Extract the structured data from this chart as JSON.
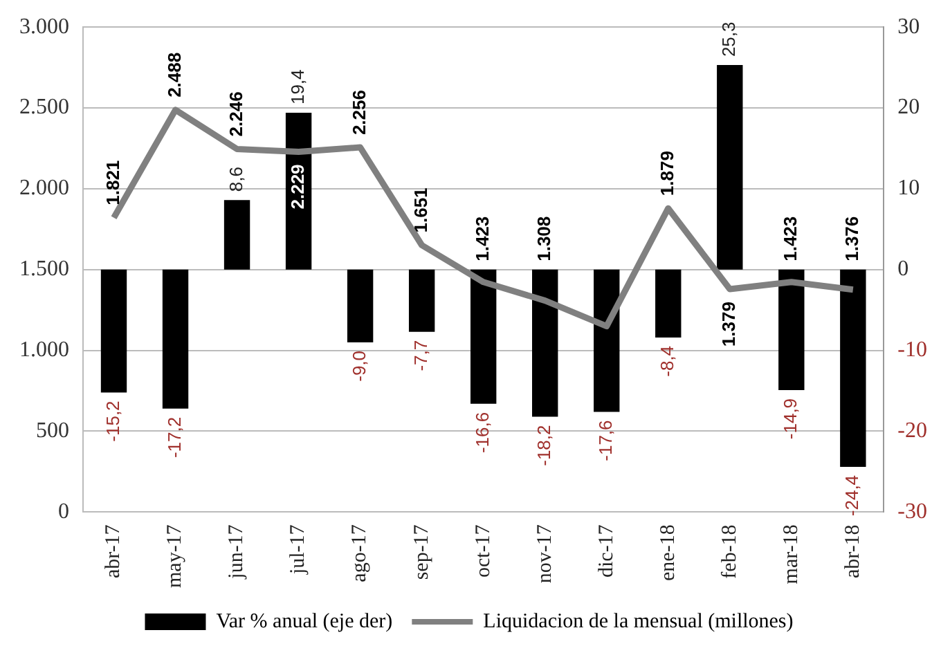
{
  "chart_data": {
    "type": "bar",
    "categories": [
      "abr-17",
      "may-17",
      "jun-17",
      "jul-17",
      "ago-17",
      "sep-17",
      "oct-17",
      "nov-17",
      "dic-17",
      "ene-18",
      "feb-18",
      "mar-18",
      "abr-18"
    ],
    "series": [
      {
        "name": "Var % anual (eje der)",
        "axis": "y2",
        "color": "#000000",
        "values": [
          -15.2,
          -17.2,
          8.6,
          19.4,
          -9.0,
          -7.7,
          -16.6,
          -18.2,
          -17.6,
          -8.4,
          25.3,
          -14.9,
          -24.4
        ],
        "value_labels": [
          "-15,2",
          "-17,2",
          "8,6",
          "19,4",
          "-9,0",
          "-7,7",
          "-16,6",
          "-18,2",
          "-17,6",
          "-8,4",
          "25,3",
          "-14,9",
          "-24,4"
        ]
      },
      {
        "name": "Liquidacion de la mensual (millones)",
        "type": "line",
        "color": "#808080",
        "values": [
          1821,
          2488,
          2246,
          2229,
          2256,
          1651,
          1423,
          1308,
          1150,
          1879,
          1379,
          1423,
          1376
        ],
        "value_labels": [
          "1.821",
          "2.488",
          "2.246",
          "2.229",
          "2.256",
          "1.651",
          "1.423",
          "1.308",
          null,
          "1.879",
          "1.379",
          "1.423",
          "1.376"
        ]
      }
    ],
    "ylim": [
      0,
      3000
    ],
    "yticks": [
      {
        "value": 0,
        "label": "0"
      },
      {
        "value": 500,
        "label": "500"
      },
      {
        "value": 1000,
        "label": "1.000"
      },
      {
        "value": 1500,
        "label": "1.500"
      },
      {
        "value": 2000,
        "label": "2.000"
      },
      {
        "value": 2500,
        "label": "2.500"
      },
      {
        "value": 3000,
        "label": "3.000"
      }
    ],
    "y2lim": [
      -30,
      30
    ],
    "y2ticks": [
      -30,
      -20,
      -10,
      0,
      10,
      20,
      30
    ],
    "grid": "y",
    "legend": "bottom",
    "marker": "none",
    "line_style": "solid"
  }
}
